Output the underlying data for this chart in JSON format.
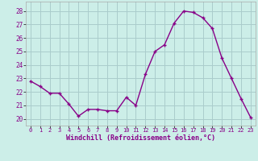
{
  "x": [
    0,
    1,
    2,
    3,
    4,
    5,
    6,
    7,
    8,
    9,
    10,
    11,
    12,
    13,
    14,
    15,
    16,
    17,
    18,
    19,
    20,
    21,
    22,
    23
  ],
  "y": [
    22.8,
    22.4,
    21.9,
    21.9,
    21.1,
    20.2,
    20.7,
    20.7,
    20.6,
    20.6,
    21.6,
    21.0,
    23.3,
    25.0,
    25.5,
    27.1,
    28.0,
    27.9,
    27.5,
    26.7,
    24.5,
    23.0,
    21.5,
    20.1
  ],
  "line_color": "#880088",
  "marker_color": "#880088",
  "bg_color": "#cceee8",
  "grid_color": "#aacccc",
  "xlabel": "Windchill (Refroidissement éolien,°C)",
  "ylim": [
    19.5,
    28.7
  ],
  "xlim": [
    -0.5,
    23.5
  ],
  "yticks": [
    20,
    21,
    22,
    23,
    24,
    25,
    26,
    27,
    28
  ],
  "xticks": [
    0,
    1,
    2,
    3,
    4,
    5,
    6,
    7,
    8,
    9,
    10,
    11,
    12,
    13,
    14,
    15,
    16,
    17,
    18,
    19,
    20,
    21,
    22,
    23
  ]
}
